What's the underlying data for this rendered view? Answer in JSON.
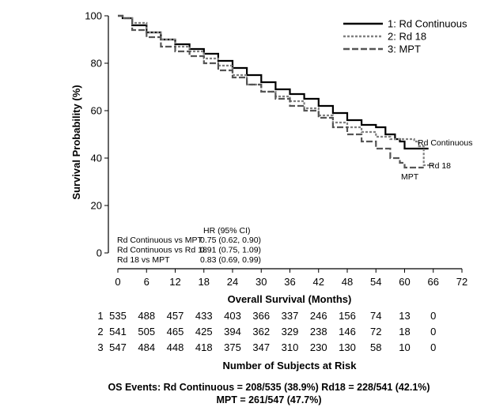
{
  "chart_data": {
    "type": "line",
    "subtype": "kaplan-meier",
    "xlabel": "Overall Survival (Months)",
    "ylabel": "Survival Probability (%)",
    "xlim": [
      0,
      72
    ],
    "ylim": [
      0,
      100
    ],
    "xticks": [
      0,
      6,
      12,
      18,
      24,
      30,
      36,
      42,
      48,
      54,
      60,
      66,
      72
    ],
    "yticks": [
      0,
      20,
      40,
      60,
      80,
      100
    ],
    "series": [
      {
        "id": "s1",
        "name": "1: Rd Continuous",
        "end_label": "Rd Continuous",
        "color": "#000000",
        "dash": "solid",
        "points": [
          [
            0,
            100
          ],
          [
            1,
            99
          ],
          [
            3,
            96
          ],
          [
            6,
            93
          ],
          [
            9,
            90
          ],
          [
            12,
            88
          ],
          [
            15,
            86
          ],
          [
            18,
            84
          ],
          [
            21,
            81
          ],
          [
            24,
            78
          ],
          [
            27,
            75
          ],
          [
            30,
            72
          ],
          [
            33,
            69
          ],
          [
            36,
            67
          ],
          [
            39,
            65
          ],
          [
            42,
            62
          ],
          [
            45,
            59
          ],
          [
            48,
            56
          ],
          [
            51,
            54
          ],
          [
            54,
            53
          ],
          [
            56,
            50
          ],
          [
            58,
            48
          ],
          [
            59,
            47
          ],
          [
            60,
            44
          ],
          [
            62,
            44
          ],
          [
            65,
            44
          ]
        ]
      },
      {
        "id": "s2",
        "name": "2: Rd 18",
        "end_label": "Rd 18",
        "color": "#808080",
        "dash": "dotted",
        "points": [
          [
            0,
            100
          ],
          [
            1,
            99
          ],
          [
            3,
            97
          ],
          [
            6,
            93
          ],
          [
            9,
            90
          ],
          [
            12,
            87
          ],
          [
            15,
            85
          ],
          [
            18,
            82
          ],
          [
            21,
            79
          ],
          [
            24,
            75
          ],
          [
            27,
            71
          ],
          [
            30,
            68
          ],
          [
            33,
            66
          ],
          [
            36,
            64
          ],
          [
            39,
            61
          ],
          [
            42,
            58
          ],
          [
            45,
            55
          ],
          [
            48,
            53
          ],
          [
            51,
            51
          ],
          [
            54,
            49
          ],
          [
            57,
            48
          ],
          [
            59,
            48
          ],
          [
            62,
            47
          ],
          [
            63,
            45
          ],
          [
            64,
            37
          ],
          [
            65,
            37
          ],
          [
            66,
            37
          ]
        ]
      },
      {
        "id": "s3",
        "name": "3: MPT",
        "end_label": "MPT",
        "color": "#555555",
        "dash": "dashed",
        "points": [
          [
            0,
            100
          ],
          [
            1,
            99
          ],
          [
            3,
            94
          ],
          [
            6,
            91
          ],
          [
            9,
            87
          ],
          [
            12,
            85
          ],
          [
            15,
            83
          ],
          [
            18,
            80
          ],
          [
            21,
            77
          ],
          [
            24,
            74
          ],
          [
            27,
            71
          ],
          [
            30,
            68
          ],
          [
            33,
            65
          ],
          [
            36,
            62
          ],
          [
            39,
            60
          ],
          [
            42,
            57
          ],
          [
            45,
            53
          ],
          [
            48,
            50
          ],
          [
            51,
            47
          ],
          [
            54,
            44
          ],
          [
            57,
            40
          ],
          [
            59,
            38
          ],
          [
            60,
            36
          ],
          [
            62,
            36
          ],
          [
            64,
            36
          ]
        ]
      }
    ],
    "hr_table": {
      "header": "HR (95% CI)",
      "rows": [
        {
          "label": "Rd Continuous vs MPT",
          "value": "0.75 (0.62, 0.90)"
        },
        {
          "label": "Rd Continuous vs Rd 18",
          "value": "0.91 (0.75, 1.09)"
        },
        {
          "label": "Rd 18 vs MPT",
          "value": "0.83 (0.69, 0.99)"
        }
      ]
    },
    "at_risk": {
      "title": "Number of Subjects at Risk",
      "rows": [
        {
          "label": "1",
          "values": [
            "535",
            "488",
            "457",
            "433",
            "403",
            "366",
            "337",
            "246",
            "156",
            "74",
            "13",
            "0"
          ]
        },
        {
          "label": "2",
          "values": [
            "541",
            "505",
            "465",
            "425",
            "394",
            "362",
            "329",
            "238",
            "146",
            "72",
            "18",
            "0"
          ]
        },
        {
          "label": "3",
          "values": [
            "547",
            "484",
            "448",
            "418",
            "375",
            "347",
            "310",
            "230",
            "130",
            "58",
            "10",
            "0"
          ]
        }
      ]
    },
    "footer": {
      "line1": "OS Events: Rd Continuous = 208/535 (38.9%)  Rd18 = 228/541 (42.1%)",
      "line2": "MPT = 261/547 (47.7%)"
    }
  }
}
